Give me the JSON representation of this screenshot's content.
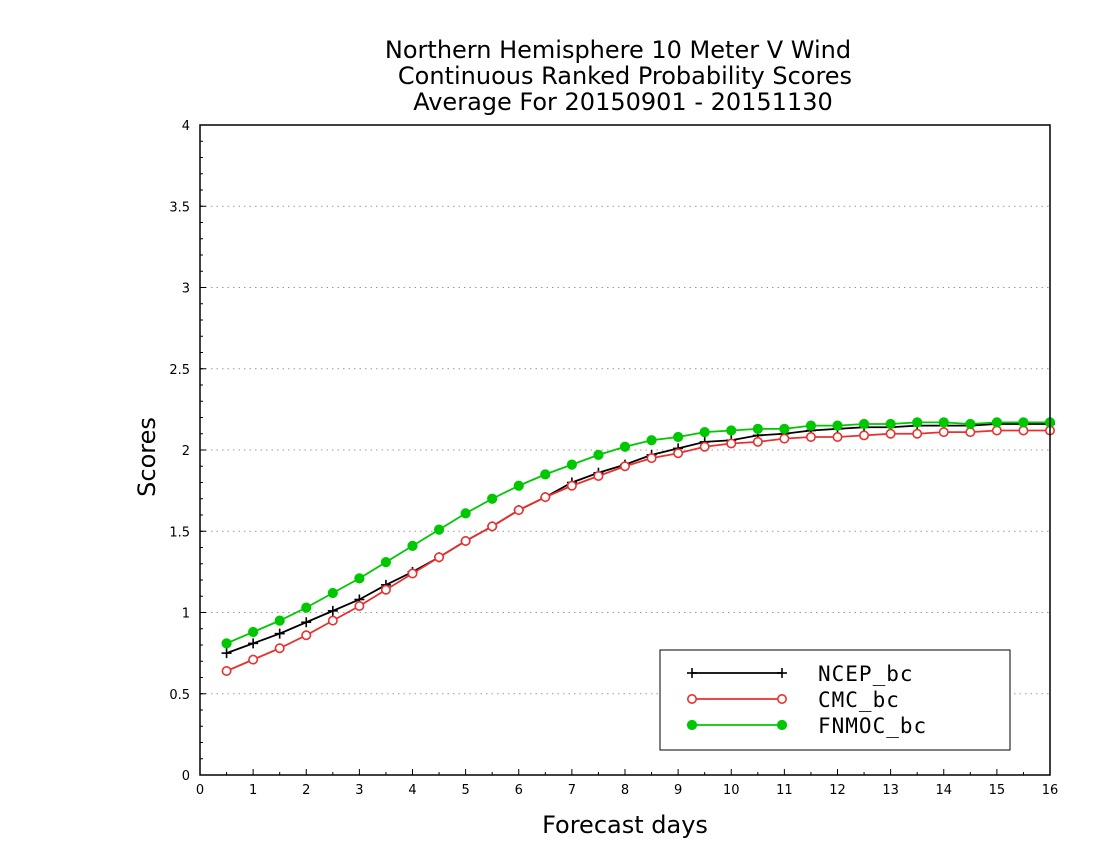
{
  "chart_data": {
    "type": "line",
    "title": [
      "Northern Hemisphere 10 Meter V Wind",
      "Continuous Ranked Probability Scores",
      "Average For 20150901 - 20151130"
    ],
    "xlabel": "Forecast days",
    "ylabel": "Scores",
    "xlim": [
      0,
      16
    ],
    "ylim": [
      0,
      4
    ],
    "xticks": [
      "0",
      "1",
      "2",
      "3",
      "4",
      "5",
      "6",
      "7",
      "8",
      "9",
      "10",
      "11",
      "12",
      "13",
      "14",
      "15",
      "16"
    ],
    "xtick_values": [
      0,
      1,
      2,
      3,
      4,
      5,
      6,
      7,
      8,
      9,
      10,
      11,
      12,
      13,
      14,
      15,
      16
    ],
    "yticks": [
      "0",
      "0.5",
      "1",
      "1.5",
      "2",
      "2.5",
      "3",
      "3.5",
      "4"
    ],
    "ytick_values": [
      0,
      0.5,
      1,
      1.5,
      2,
      2.5,
      3,
      3.5,
      4
    ],
    "grid": "horizontal-dotted",
    "legend_position": "bottom-right",
    "x": [
      0.5,
      1,
      1.5,
      2,
      2.5,
      3,
      3.5,
      4,
      4.5,
      5,
      5.5,
      6,
      6.5,
      7,
      7.5,
      8,
      8.5,
      9,
      9.5,
      10,
      10.5,
      11,
      11.5,
      12,
      12.5,
      13,
      13.5,
      14,
      14.5,
      15,
      15.5,
      16
    ],
    "series": [
      {
        "name": "NCEP_bc",
        "color": "#000000",
        "marker": "plus",
        "values": [
          0.75,
          0.81,
          0.87,
          0.94,
          1.01,
          1.08,
          1.17,
          1.25,
          1.34,
          1.44,
          1.53,
          1.63,
          1.71,
          1.8,
          1.86,
          1.91,
          1.97,
          2.01,
          2.05,
          2.06,
          2.09,
          2.1,
          2.12,
          2.13,
          2.14,
          2.14,
          2.15,
          2.15,
          2.15,
          2.16,
          2.16,
          2.16
        ]
      },
      {
        "name": "CMC_bc",
        "color": "#e8312f",
        "marker": "open-circle",
        "values": [
          0.64,
          0.71,
          0.78,
          0.86,
          0.95,
          1.04,
          1.14,
          1.24,
          1.34,
          1.44,
          1.53,
          1.63,
          1.71,
          1.78,
          1.84,
          1.9,
          1.95,
          1.98,
          2.02,
          2.04,
          2.05,
          2.07,
          2.08,
          2.08,
          2.09,
          2.1,
          2.1,
          2.11,
          2.11,
          2.12,
          2.12,
          2.12
        ]
      },
      {
        "name": "FNMOC_bc",
        "color": "#00c800",
        "marker": "filled-circle",
        "values": [
          0.81,
          0.88,
          0.95,
          1.03,
          1.12,
          1.21,
          1.31,
          1.41,
          1.51,
          1.61,
          1.7,
          1.78,
          1.85,
          1.91,
          1.97,
          2.02,
          2.06,
          2.08,
          2.11,
          2.12,
          2.13,
          2.13,
          2.15,
          2.15,
          2.16,
          2.16,
          2.17,
          2.17,
          2.16,
          2.17,
          2.17,
          2.17
        ]
      }
    ]
  }
}
